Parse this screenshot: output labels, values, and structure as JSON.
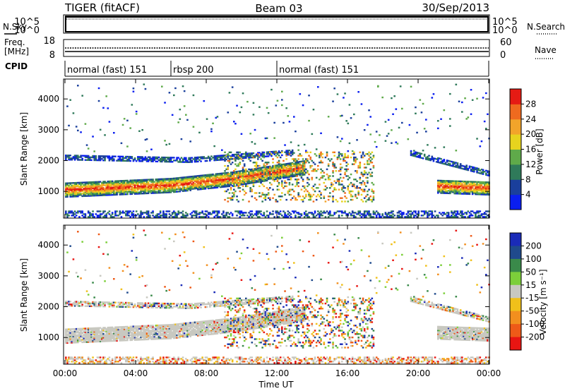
{
  "header": {
    "title_left": "TIGER (fitACF)",
    "title_center": "Beam 03",
    "title_right": "30/Sep/2013"
  },
  "strips": {
    "nsky_label": "N.Sky",
    "nsearch_label": "N.Search",
    "nsky_ticks": [
      "10^5",
      "10^0"
    ],
    "nsearch_ticks": [
      "10^5",
      "10^0"
    ],
    "freq_label_line1": "Freq.",
    "freq_label_line2": "[MHz]",
    "freq_ticks": [
      "18",
      "8"
    ],
    "nave_label": "Nave",
    "nave_ticks": [
      "60",
      "0"
    ],
    "cpid_label": "CPID"
  },
  "cpid_segments": [
    {
      "label": "normal (fast) 151",
      "start_h": 0,
      "end_h": 6
    },
    {
      "label": "rbsp 200",
      "start_h": 6,
      "end_h": 12
    },
    {
      "label": "normal (fast) 151",
      "start_h": 12,
      "end_h": 24
    }
  ],
  "chart_data": [
    {
      "type": "heatmap",
      "name": "Power",
      "ylabel": "Slant Range [km]",
      "xlabel": "Time UT",
      "x_range_hours": [
        0,
        24
      ],
      "ylim_km": [
        180,
        4600
      ],
      "y_ticks": [
        1000,
        2000,
        3000,
        4000
      ],
      "colorbar": {
        "label": "Power [dB]",
        "ticks": [
          "4",
          "8",
          "12",
          "16",
          "20",
          "24",
          "28"
        ],
        "colors": [
          "#0a1ef0",
          "#1a3f9c",
          "#2f7a5a",
          "#5faa4a",
          "#e7d31e",
          "#f2a42a",
          "#ef6a1f",
          "#e51b14"
        ]
      }
    },
    {
      "type": "heatmap",
      "name": "Velocity",
      "ylabel": "Slant Range [km]",
      "xlabel": "Time UT",
      "x_range_hours": [
        0,
        24
      ],
      "ylim_km": [
        180,
        4600
      ],
      "y_ticks": [
        1000,
        2000,
        3000,
        4000
      ],
      "colorbar": {
        "label": "Velocity [m s⁻¹]",
        "ticks": [
          "200",
          "100",
          "50",
          "15",
          "-15",
          "-50",
          "-100",
          "-200"
        ],
        "colors": [
          "#1a2bb8",
          "#1f4a8c",
          "#3a8a4a",
          "#7ccf3a",
          "#c8c8c0",
          "#f0c01a",
          "#f28f1e",
          "#ee5a18",
          "#e81512"
        ]
      }
    }
  ],
  "x_ticks": [
    "00:00",
    "04:00",
    "08:00",
    "12:00",
    "16:00",
    "20:00",
    "00:00"
  ]
}
